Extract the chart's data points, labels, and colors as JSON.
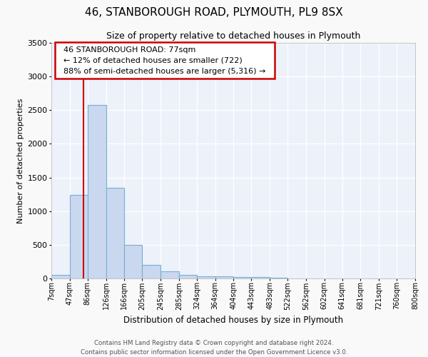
{
  "title": "46, STANBOROUGH ROAD, PLYMOUTH, PL9 8SX",
  "subtitle": "Size of property relative to detached houses in Plymouth",
  "xlabel": "Distribution of detached houses by size in Plymouth",
  "ylabel": "Number of detached properties",
  "bar_color": "#c9d8ef",
  "bar_edge_color": "#7aadd4",
  "background_color": "#edf1f9",
  "grid_color": "#ffffff",
  "vline_x": 77,
  "vline_color": "#cc0000",
  "bins": [
    7,
    47,
    86,
    126,
    166,
    205,
    245,
    285,
    324,
    364,
    404,
    443,
    483,
    522,
    562,
    602,
    641,
    681,
    721,
    760,
    800
  ],
  "counts": [
    50,
    1245,
    2580,
    1350,
    500,
    205,
    110,
    55,
    30,
    30,
    20,
    20,
    10,
    5,
    5,
    5,
    2,
    2,
    2,
    2
  ],
  "tick_labels": [
    "7sqm",
    "47sqm",
    "86sqm",
    "126sqm",
    "166sqm",
    "205sqm",
    "245sqm",
    "285sqm",
    "324sqm",
    "364sqm",
    "404sqm",
    "443sqm",
    "483sqm",
    "522sqm",
    "562sqm",
    "602sqm",
    "641sqm",
    "681sqm",
    "721sqm",
    "760sqm",
    "800sqm"
  ],
  "ylim": [
    0,
    3500
  ],
  "yticks": [
    0,
    500,
    1000,
    1500,
    2000,
    2500,
    3000,
    3500
  ],
  "annotation_title": "46 STANBOROUGH ROAD: 77sqm",
  "annotation_line1": "← 12% of detached houses are smaller (722)",
  "annotation_line2": "88% of semi-detached houses are larger (5,316) →",
  "annotation_box_color": "#ffffff",
  "annotation_box_edge": "#cc0000",
  "footer_line1": "Contains HM Land Registry data © Crown copyright and database right 2024.",
  "footer_line2": "Contains public sector information licensed under the Open Government Licence v3.0."
}
